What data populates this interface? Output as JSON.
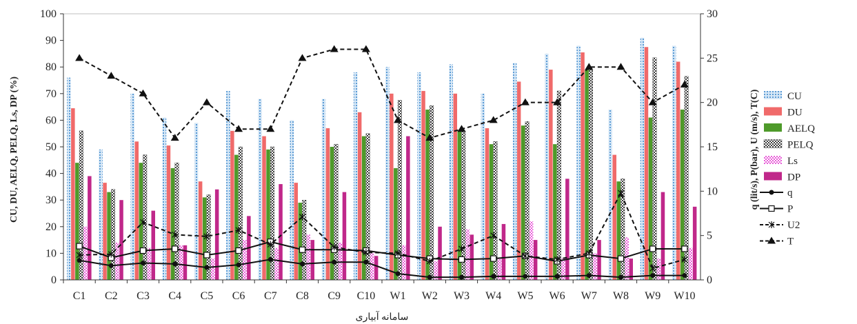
{
  "chart_data": {
    "type": "bar+line",
    "categories": [
      "C1",
      "C2",
      "C3",
      "C4",
      "C5",
      "C6",
      "C7",
      "C8",
      "C9",
      "C10",
      "W1",
      "W2",
      "W3",
      "W4",
      "W5",
      "W6",
      "W7",
      "W8",
      "W9",
      "W10"
    ],
    "xlabel": "سامانه آبیاری",
    "ylabel_left": "CU, DU, AELQ, PELQ, Ls, DP (%)",
    "ylabel_right": "q (lit/s), P(bar), U (m/s), T(C)",
    "ylim_left": [
      0,
      100
    ],
    "ylim_right": [
      0,
      30
    ],
    "yticks_left": [
      "0",
      "10",
      "20",
      "30",
      "40",
      "50",
      "60",
      "70",
      "80",
      "90",
      "100"
    ],
    "yticks_right": [
      "0",
      "5",
      "10",
      "15",
      "20",
      "25",
      "30"
    ],
    "grid": false,
    "legend_position": "right",
    "bar_series": [
      {
        "name": "CU",
        "color": "#9dc3e6",
        "pattern": "dots",
        "values": [
          76,
          49,
          70,
          61,
          59,
          71,
          68,
          60,
          68,
          78,
          80,
          78,
          81,
          70,
          81.5,
          85,
          88,
          64,
          91,
          88
        ]
      },
      {
        "name": "DU",
        "color": "#f06a6a",
        "pattern": "solid",
        "values": [
          64.5,
          36.5,
          52,
          50.5,
          37,
          56,
          54,
          36.5,
          57,
          63,
          70,
          71,
          70,
          57,
          74.5,
          79,
          85.5,
          47,
          87.5,
          82
        ]
      },
      {
        "name": "AELQ",
        "color": "#4e9a2a",
        "pattern": "solid",
        "values": [
          44,
          33,
          44,
          42,
          31,
          47,
          49,
          29,
          50,
          54,
          42,
          64,
          56,
          51,
          58,
          51,
          79,
          37,
          61,
          64
        ]
      },
      {
        "name": "PELQ",
        "color": "#3d3d3d",
        "pattern": "checker",
        "values": [
          56,
          34,
          47,
          44,
          32,
          50,
          50,
          30,
          51,
          55,
          67.5,
          65.5,
          56,
          52,
          59.5,
          71,
          79,
          38,
          83.5,
          76.5
        ]
      },
      {
        "name": "Ls",
        "color": "#e85fd8",
        "pattern": "checker",
        "values": [
          20,
          14,
          12,
          13,
          8,
          15,
          12,
          17,
          14,
          11,
          13,
          7,
          19,
          8,
          22,
          8,
          10,
          16,
          8,
          12
        ]
      },
      {
        "name": "DP",
        "color": "#c0288a",
        "pattern": "solid",
        "values": [
          39,
          30,
          26,
          13,
          34,
          24,
          36,
          15,
          33,
          9,
          54,
          20,
          17,
          21,
          15,
          38,
          15,
          8,
          33,
          27.5
        ]
      }
    ],
    "line_series": [
      {
        "name": "q",
        "marker": "circle",
        "dash": "solid",
        "values": [
          2.2,
          1.6,
          1.9,
          1.8,
          1.4,
          1.7,
          2.3,
          1.8,
          2,
          2,
          0.7,
          0.3,
          0.3,
          0.4,
          0.4,
          0.4,
          0.5,
          0.3,
          0.5,
          0.5
        ]
      },
      {
        "name": "P",
        "marker": "square",
        "dash": "solid",
        "values": [
          3.8,
          2.5,
          3.3,
          3.5,
          2.8,
          3.3,
          4.3,
          3.4,
          3.4,
          3.3,
          2.8,
          2.4,
          2.3,
          2.4,
          2.7,
          2.1,
          2.8,
          2.4,
          3.5,
          3.5
        ]
      },
      {
        "name": "U2",
        "marker": "x",
        "dash": "dash",
        "values": [
          2.8,
          2.9,
          6.5,
          5.1,
          4.9,
          5.6,
          4,
          7.1,
          3.7,
          3.1,
          3,
          2.1,
          3.5,
          5,
          2.7,
          2.3,
          3,
          9.8,
          1.3,
          2.3
        ]
      },
      {
        "name": "T",
        "marker": "triangle",
        "dash": "dash",
        "values": [
          25,
          23,
          21,
          16,
          20,
          17,
          17,
          25,
          26,
          26,
          18,
          16,
          17,
          18,
          20,
          20,
          24,
          24,
          20,
          22
        ]
      }
    ]
  }
}
